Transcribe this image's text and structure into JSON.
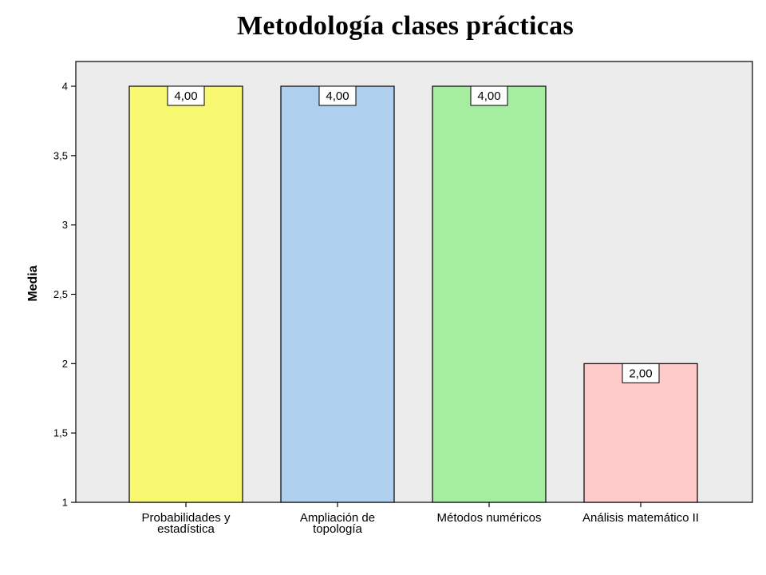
{
  "chart_data": {
    "type": "bar",
    "title": "Metodología clases prácticas",
    "xlabel": "",
    "ylabel": "Media",
    "ylim": [
      1,
      4.1
    ],
    "yticks": [
      {
        "value": 1,
        "label": "1"
      },
      {
        "value": 1.5,
        "label": "1,5"
      },
      {
        "value": 2,
        "label": "2"
      },
      {
        "value": 2.5,
        "label": "2,5"
      },
      {
        "value": 3,
        "label": "3"
      },
      {
        "value": 3.5,
        "label": "3,5"
      },
      {
        "value": 4,
        "label": "4"
      }
    ],
    "categories": [
      [
        "Probabilidades y",
        "estadística"
      ],
      [
        "Ampliación de",
        "topología"
      ],
      [
        "Métodos numéricos"
      ],
      [
        "Análisis matemático II"
      ]
    ],
    "values": [
      4,
      4,
      4,
      2
    ],
    "value_labels": [
      "4,00",
      "4,00",
      "4,00",
      "2,00"
    ],
    "colors": [
      "#f9f871",
      "#aecfee",
      "#a5ee9f",
      "#fecaca"
    ],
    "plot_background": "#ececec",
    "grid": false,
    "legend": "none"
  }
}
